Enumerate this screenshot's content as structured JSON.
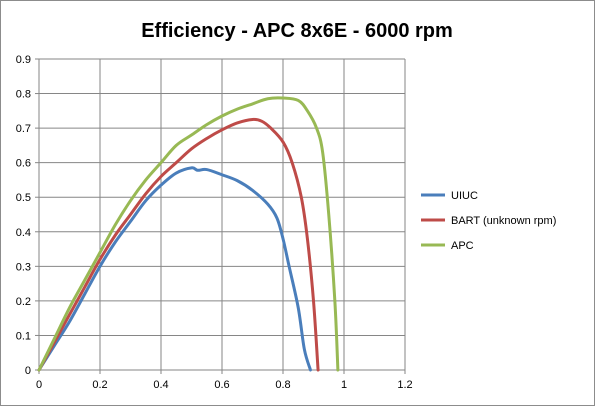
{
  "chart_data": {
    "type": "line",
    "title": "Efficiency - APC 8x6E - 6000 rpm",
    "xlabel": "",
    "ylabel": "",
    "xlim": [
      0,
      1.2
    ],
    "ylim": [
      0,
      0.9
    ],
    "x_ticks": [
      "0",
      "0.2",
      "0.4",
      "0.6",
      "0.8",
      "1",
      "1.2"
    ],
    "y_ticks": [
      "0",
      "0.1",
      "0.2",
      "0.3",
      "0.4",
      "0.5",
      "0.6",
      "0.7",
      "0.8",
      "0.9"
    ],
    "grid": true,
    "legend_position": "right",
    "series": [
      {
        "name": "UIUC",
        "color": "#4a7ebb",
        "x": [
          0,
          0.05,
          0.1,
          0.15,
          0.2,
          0.25,
          0.3,
          0.35,
          0.4,
          0.45,
          0.5,
          0.52,
          0.55,
          0.6,
          0.65,
          0.7,
          0.75,
          0.78,
          0.8,
          0.82,
          0.85,
          0.87,
          0.89
        ],
        "y": [
          0,
          0.07,
          0.14,
          0.22,
          0.3,
          0.37,
          0.43,
          0.49,
          0.535,
          0.57,
          0.585,
          0.578,
          0.58,
          0.565,
          0.548,
          0.52,
          0.48,
          0.44,
          0.38,
          0.3,
          0.18,
          0.06,
          0
        ]
      },
      {
        "name": "BART (unknown rpm)",
        "color": "#be4b48",
        "x": [
          0,
          0.05,
          0.1,
          0.15,
          0.2,
          0.25,
          0.3,
          0.35,
          0.4,
          0.45,
          0.5,
          0.55,
          0.6,
          0.65,
          0.7,
          0.73,
          0.76,
          0.8,
          0.83,
          0.86,
          0.88,
          0.9,
          0.915
        ],
        "y": [
          0,
          0.08,
          0.16,
          0.24,
          0.32,
          0.39,
          0.45,
          0.51,
          0.56,
          0.6,
          0.64,
          0.67,
          0.695,
          0.715,
          0.725,
          0.72,
          0.7,
          0.66,
          0.6,
          0.5,
          0.38,
          0.2,
          0
        ]
      },
      {
        "name": "APC",
        "color": "#98b954",
        "x": [
          0,
          0.05,
          0.1,
          0.15,
          0.2,
          0.25,
          0.3,
          0.35,
          0.4,
          0.45,
          0.5,
          0.55,
          0.6,
          0.65,
          0.7,
          0.75,
          0.8,
          0.85,
          0.88,
          0.91,
          0.93,
          0.95,
          0.97,
          0.98
        ],
        "y": [
          0,
          0.09,
          0.18,
          0.26,
          0.34,
          0.42,
          0.49,
          0.55,
          0.6,
          0.65,
          0.68,
          0.71,
          0.735,
          0.755,
          0.77,
          0.785,
          0.787,
          0.78,
          0.75,
          0.7,
          0.63,
          0.45,
          0.2,
          0
        ]
      }
    ]
  }
}
